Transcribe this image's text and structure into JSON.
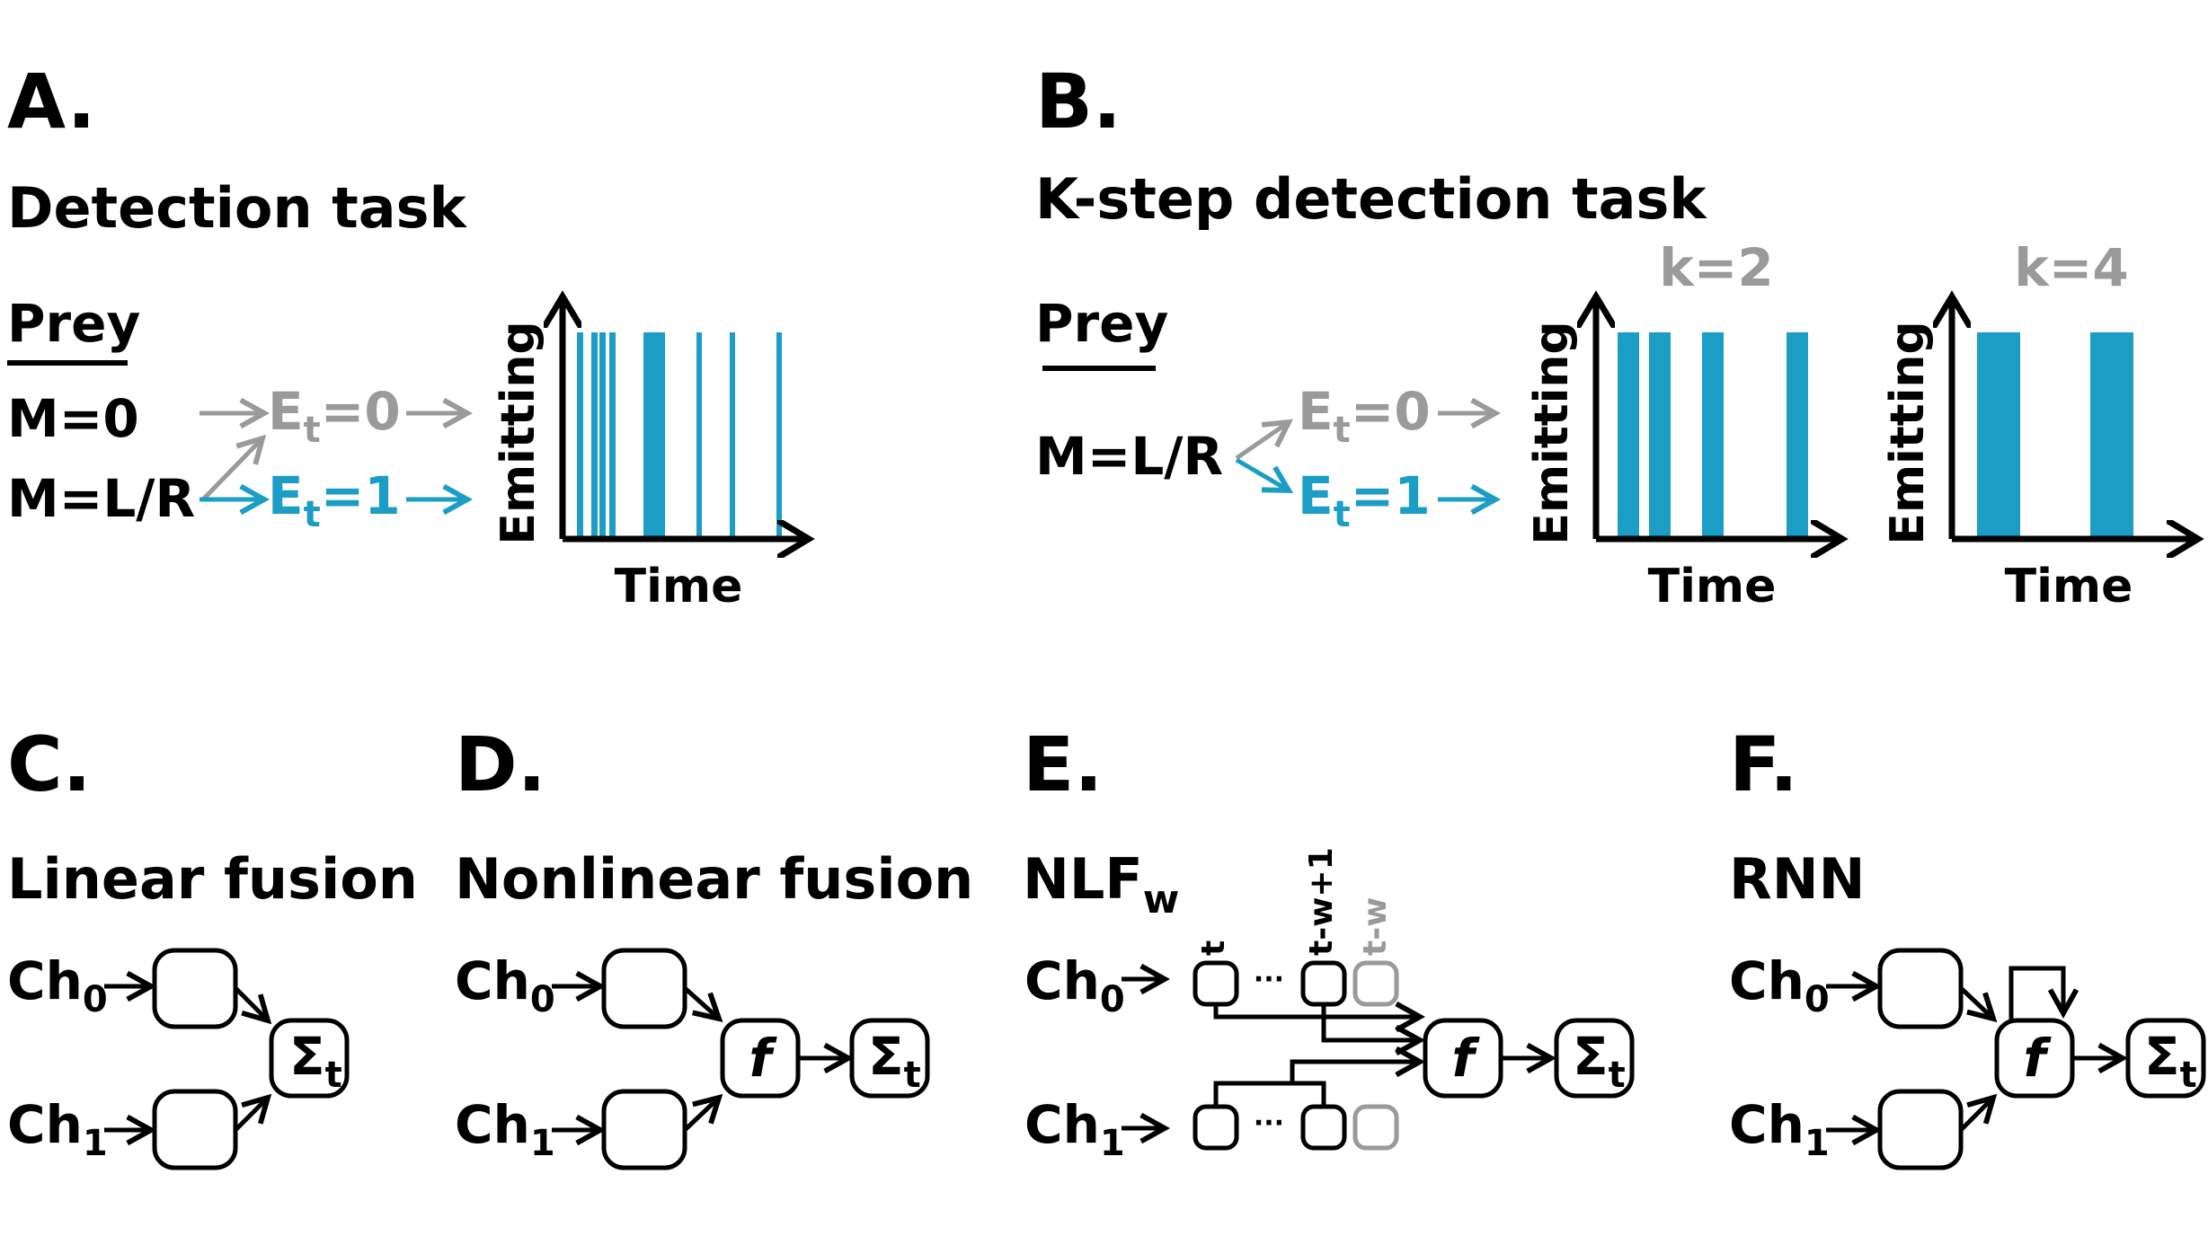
{
  "colors": {
    "accent_blue": "#1b9dc6",
    "gray": "#9a9a9a",
    "black": "#000000"
  },
  "panelA": {
    "label": "A.",
    "title": "Detection task",
    "prey_heading": "Prey",
    "state_m0": "M=0",
    "state_mlr": "M=L/R",
    "e_prefix": "E",
    "e_subscript": "t",
    "e0_suffix": "=0",
    "e1_suffix": "=1",
    "y_axis": "Emitting",
    "x_axis": "Time"
  },
  "panelB": {
    "label": "B.",
    "title": "K-step detection task",
    "prey_heading": "Prey",
    "state_mlr": "M=L/R",
    "e_prefix": "E",
    "e_subscript": "t",
    "e0_suffix": "=0",
    "e1_suffix": "=1",
    "k2": "k=2",
    "k4": "k=4",
    "y_axis": "Emitting",
    "x_axis": "Time"
  },
  "panelC": {
    "label": "C.",
    "title": "Linear fusion",
    "ch_prefix": "Ch",
    "ch0_sub": "0",
    "ch1_sub": "1",
    "sum_symbol": "Σ",
    "sum_sub": "t"
  },
  "panelD": {
    "label": "D.",
    "title": "Nonlinear fusion",
    "ch_prefix": "Ch",
    "ch0_sub": "0",
    "ch1_sub": "1",
    "f_symbol": "f",
    "sum_symbol": "Σ",
    "sum_sub": "t"
  },
  "panelE": {
    "label": "E.",
    "title": "NLF",
    "title_sub": "w",
    "ch_prefix": "Ch",
    "ch0_sub": "0",
    "ch1_sub": "1",
    "time_t": "t",
    "time_tw1": "t-w+1",
    "time_tw": "t-w",
    "dots": "···",
    "f_symbol": "f",
    "sum_symbol": "Σ",
    "sum_sub": "t"
  },
  "panelF": {
    "label": "F.",
    "title": "RNN",
    "ch_prefix": "Ch",
    "ch0_sub": "0",
    "ch1_sub": "1",
    "f_symbol": "f",
    "sum_symbol": "Σ",
    "sum_sub": "t"
  }
}
